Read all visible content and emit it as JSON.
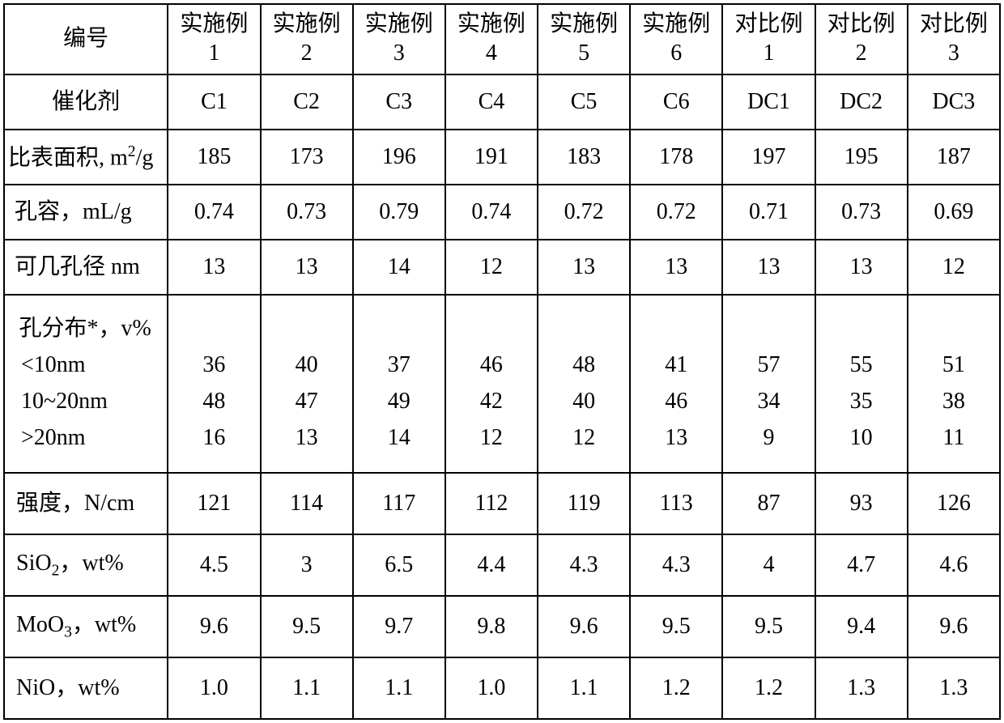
{
  "table": {
    "columns": [
      {
        "label": "编号",
        "sublabel": ""
      },
      {
        "label": "实施例",
        "sublabel": "1"
      },
      {
        "label": "实施例",
        "sublabel": "2"
      },
      {
        "label": "实施例",
        "sublabel": "3"
      },
      {
        "label": "实施例",
        "sublabel": "4"
      },
      {
        "label": "实施例",
        "sublabel": "5"
      },
      {
        "label": "实施例",
        "sublabel": "6"
      },
      {
        "label": "对比例",
        "sublabel": "1"
      },
      {
        "label": "对比例",
        "sublabel": "2"
      },
      {
        "label": "对比例",
        "sublabel": "3"
      }
    ],
    "rows": [
      {
        "label": "催化剂",
        "values": [
          "C1",
          "C2",
          "C3",
          "C4",
          "C5",
          "C6",
          "DC1",
          "DC2",
          "DC3"
        ]
      },
      {
        "label": "比表面积, m²/g",
        "values": [
          "185",
          "173",
          "196",
          "191",
          "183",
          "178",
          "197",
          "195",
          "187"
        ]
      },
      {
        "label": "孔容，mL/g",
        "values": [
          "0.74",
          "0.73",
          "0.79",
          "0.74",
          "0.72",
          "0.72",
          "0.71",
          "0.73",
          "0.69"
        ]
      },
      {
        "label": "可几孔径 nm",
        "values": [
          "13",
          "13",
          "14",
          "12",
          "13",
          "13",
          "13",
          "13",
          "12"
        ]
      }
    ],
    "pore_distribution": {
      "title": "孔分布*，v%",
      "sublabels": [
        "<10nm",
        "10~20nm",
        ">20nm"
      ],
      "values": [
        [
          "36",
          "48",
          "16"
        ],
        [
          "40",
          "47",
          "13"
        ],
        [
          "37",
          "49",
          "14"
        ],
        [
          "46",
          "42",
          "12"
        ],
        [
          "48",
          "40",
          "12"
        ],
        [
          "41",
          "46",
          "13"
        ],
        [
          "57",
          "34",
          "9"
        ],
        [
          "55",
          "35",
          "10"
        ],
        [
          "51",
          "38",
          "11"
        ]
      ]
    },
    "rows_after": [
      {
        "label": "强度，N/cm",
        "values": [
          "121",
          "114",
          "117",
          "112",
          "119",
          "113",
          "87",
          "93",
          "126"
        ]
      },
      {
        "label": "SiO₂，wt%",
        "values": [
          "4.5",
          "3",
          "6.5",
          "4.4",
          "4.3",
          "4.3",
          "4",
          "4.7",
          "4.6"
        ]
      },
      {
        "label": "MoO₃，wt%",
        "values": [
          "9.6",
          "9.5",
          "9.7",
          "9.8",
          "9.6",
          "9.5",
          "9.5",
          "9.4",
          "9.6"
        ]
      },
      {
        "label": "NiO，wt%",
        "values": [
          "1.0",
          "1.1",
          "1.1",
          "1.0",
          "1.1",
          "1.2",
          "1.2",
          "1.3",
          "1.3"
        ]
      }
    ],
    "style": {
      "border_color": "#000000",
      "background_color": "#ffffff",
      "text_color": "#000000",
      "font_size_pt": 21,
      "header_row_height": 80,
      "data_row_height": 68,
      "multiline_row_height": 220,
      "border_width": 2,
      "col_label_width": 202,
      "col_data_width": 114
    }
  }
}
